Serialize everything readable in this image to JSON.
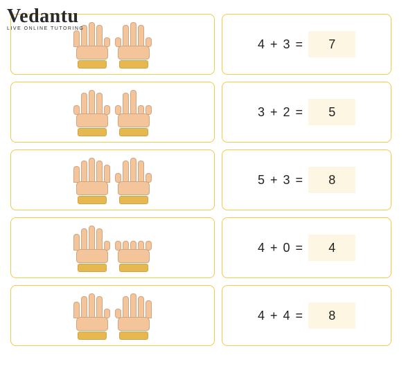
{
  "logo": {
    "text": "Vedantu",
    "tagline": "LIVE ONLINE TUTORING",
    "color": "#2a2a2a"
  },
  "colors": {
    "card_border": "#f2c94c",
    "answer_bg": "#fdf6e3",
    "skin": "#f4c49a",
    "cuff": "#e6b84f"
  },
  "rows": [
    {
      "hands": [
        {
          "fingers": [
            1,
            1,
            1,
            1,
            0
          ]
        },
        {
          "fingers": [
            0,
            1,
            1,
            1,
            0
          ]
        }
      ],
      "a": "4",
      "op": "+",
      "b": "3",
      "eq": "=",
      "answer": "7"
    },
    {
      "hands": [
        {
          "fingers": [
            0,
            1,
            1,
            1,
            0
          ]
        },
        {
          "fingers": [
            0,
            1,
            1,
            0,
            0
          ]
        }
      ],
      "a": "3",
      "op": "+",
      "b": "2",
      "eq": "=",
      "answer": "5"
    },
    {
      "hands": [
        {
          "fingers": [
            1,
            1,
            1,
            1,
            1
          ]
        },
        {
          "fingers": [
            0,
            1,
            1,
            1,
            0
          ]
        }
      ],
      "a": "5",
      "op": "+",
      "b": "3",
      "eq": "=",
      "answer": "8"
    },
    {
      "hands": [
        {
          "fingers": [
            1,
            1,
            1,
            1,
            0
          ]
        },
        {
          "fingers": [
            0,
            0,
            0,
            0,
            0
          ]
        }
      ],
      "a": "4",
      "op": "+",
      "b": "0",
      "eq": "=",
      "answer": "4"
    },
    {
      "hands": [
        {
          "fingers": [
            1,
            1,
            1,
            1,
            0
          ]
        },
        {
          "fingers": [
            0,
            1,
            1,
            1,
            1
          ]
        }
      ],
      "a": "4",
      "op": "+",
      "b": "4",
      "eq": "=",
      "answer": "8"
    }
  ]
}
